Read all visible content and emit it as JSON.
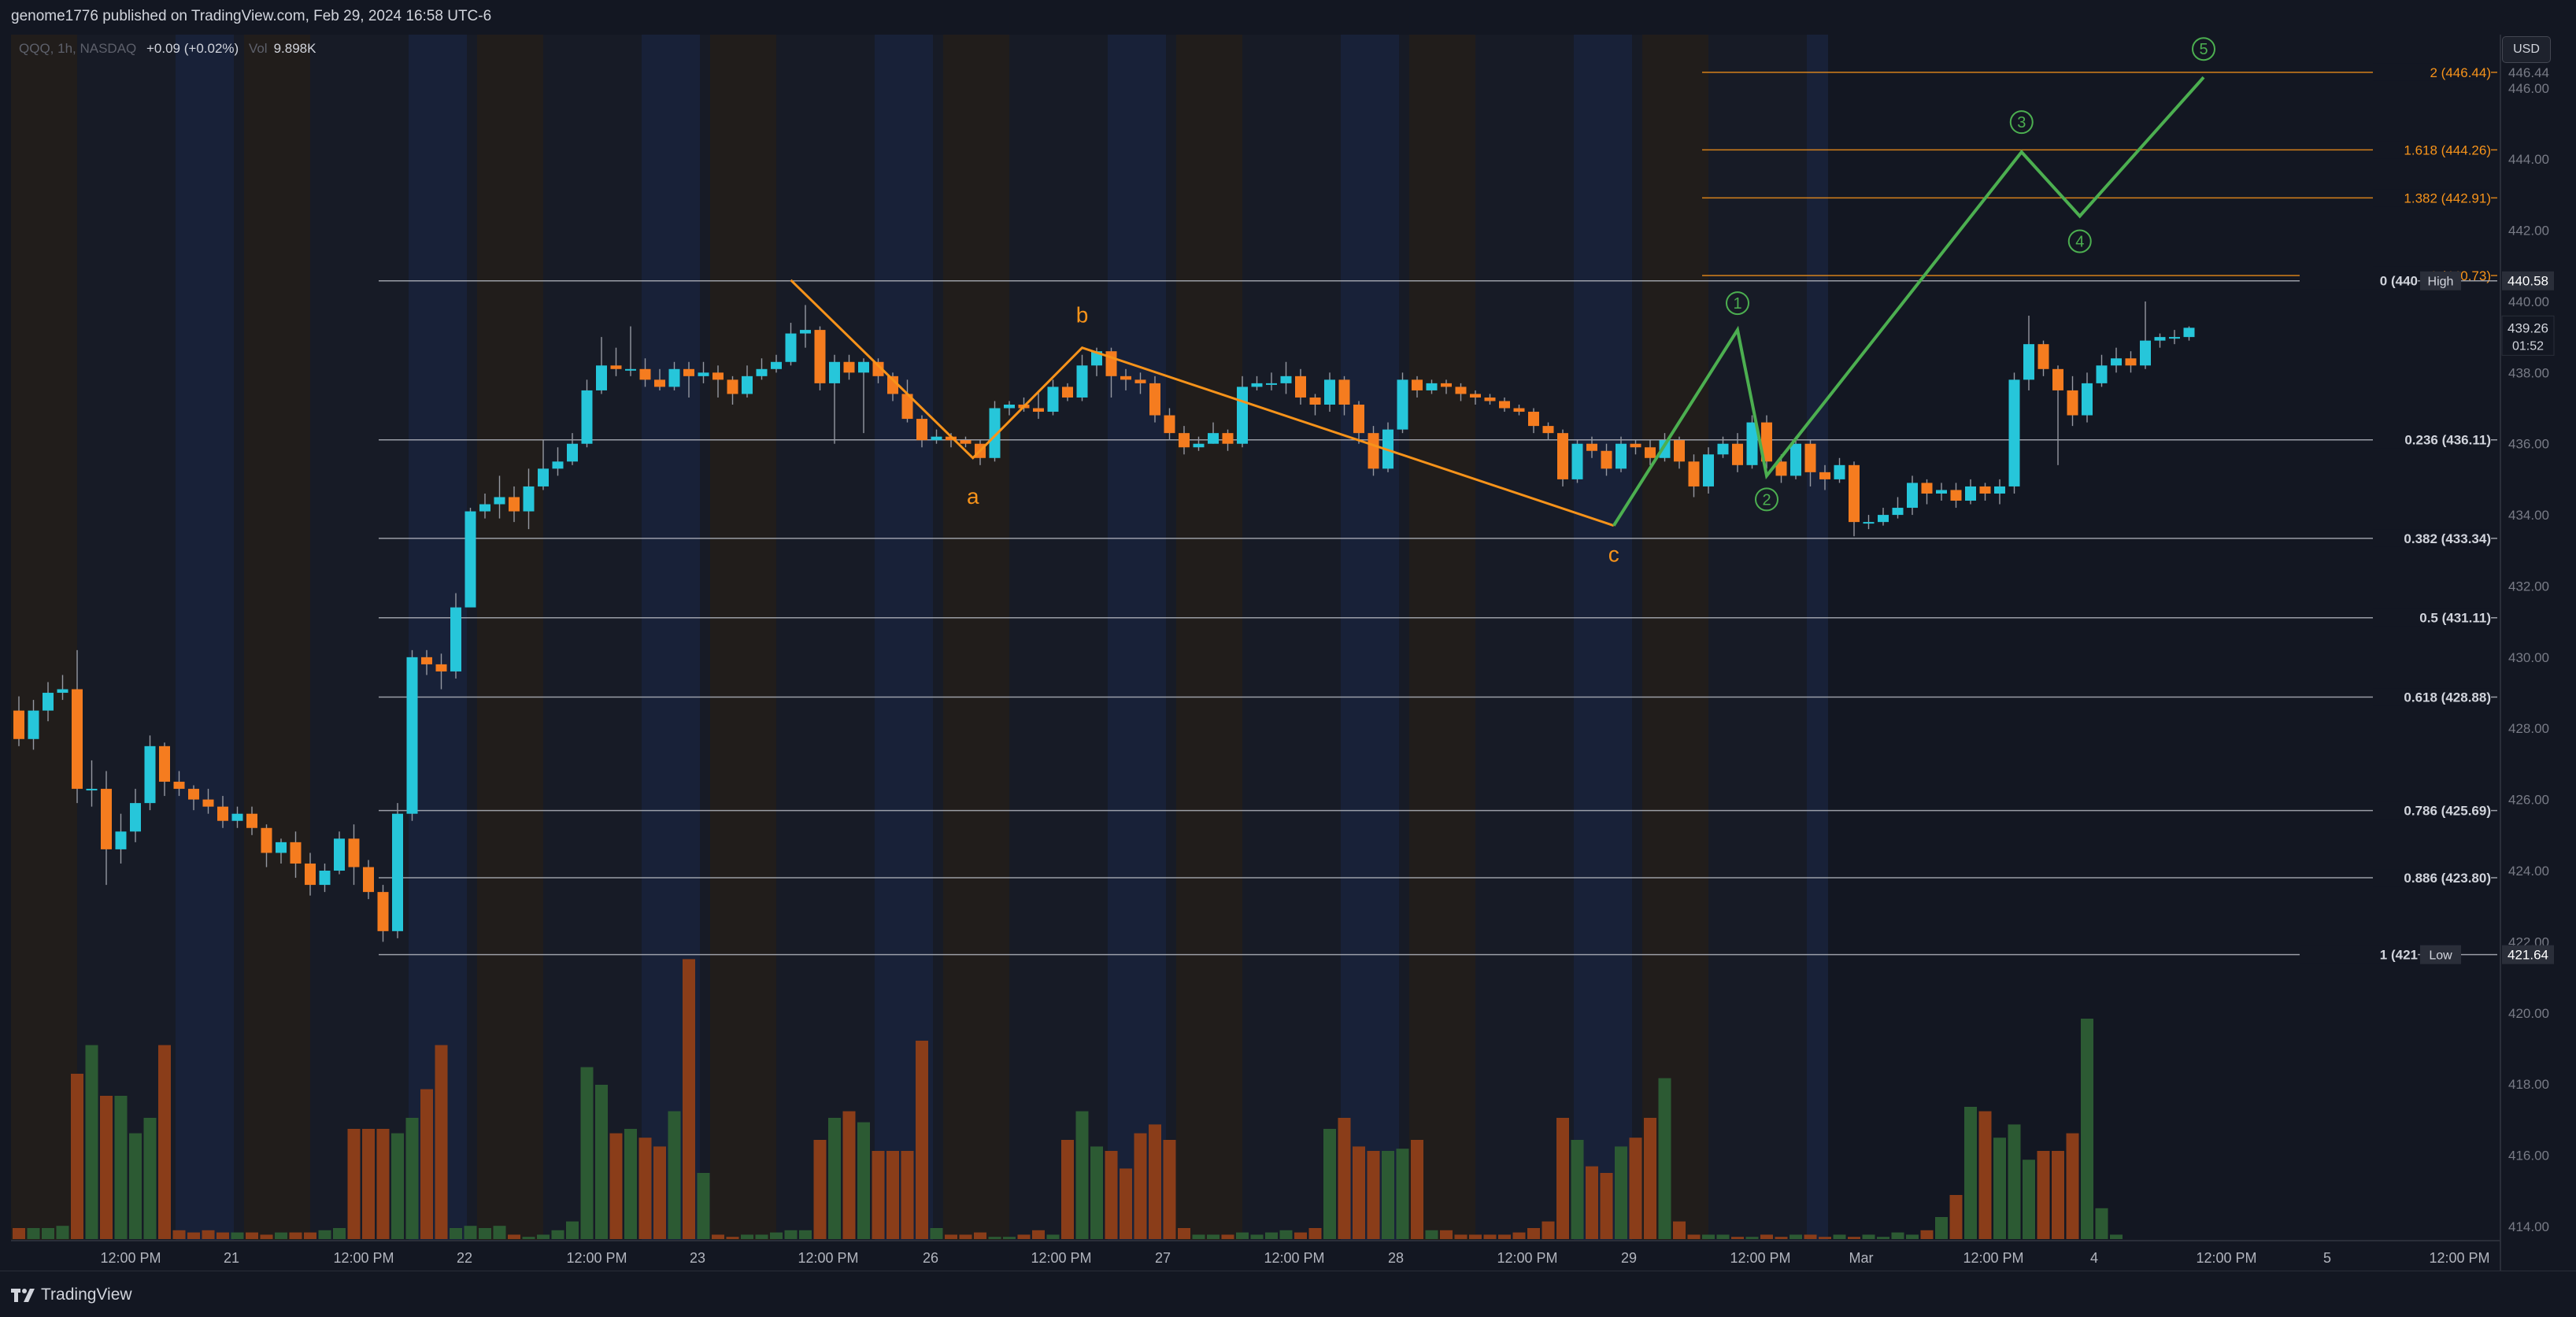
{
  "publisher": {
    "text": "genome1776 published on TradingView.com, Feb 29, 2024 16:58 UTC-6"
  },
  "legend": {
    "symbol": "QQQ, 1h, NASDAQ",
    "change": "+0.09 (+0.02%)",
    "vol_label": "Vol",
    "volume": "9.898K"
  },
  "currency_button": "USD",
  "footer": {
    "logo_text": "TradingView"
  },
  "colors": {
    "background": "#131722",
    "up": "#26c6da",
    "down": "#f57c1f",
    "vol_up": "#2c5a33",
    "vol_down": "#8a3d19",
    "wave_abc": "#f7931a",
    "wave_impulse": "#4caf50",
    "fib_extension": "#f7931a",
    "fib_retracement": "#b2b5be"
  },
  "chart_data": {
    "type": "candlestick",
    "symbol": "QQQ",
    "timeframe": "1h",
    "y_ticks": [
      "446.44",
      "446.00",
      "444.00",
      "442.00",
      "440.00",
      "438.00",
      "436.00",
      "434.00",
      "432.00",
      "430.00",
      "428.00",
      "426.00",
      "424.00",
      "422.00",
      "420.00",
      "418.00",
      "416.00",
      "414.00"
    ],
    "x_ticks": [
      "12:00 PM",
      "21",
      "12:00 PM",
      "22",
      "12:00 PM",
      "23",
      "12:00 PM",
      "26",
      "12:00 PM",
      "27",
      "12:00 PM",
      "28",
      "12:00 PM",
      "29",
      "12:00 PM",
      "Mar",
      "12:00 PM",
      "4",
      "12:00 PM",
      "5",
      "12:00 PM"
    ],
    "ylim": [
      413.6,
      447.5
    ],
    "candles": [
      [
        428.5,
        427.7,
        428.9,
        427.5
      ],
      [
        427.7,
        428.5,
        428.8,
        427.4
      ],
      [
        428.5,
        429.0,
        429.3,
        428.2
      ],
      [
        429.0,
        429.1,
        429.5,
        428.8
      ],
      [
        429.1,
        426.3,
        430.2,
        425.9
      ],
      [
        426.3,
        426.3,
        427.1,
        425.8
      ],
      [
        426.3,
        424.6,
        426.8,
        423.6
      ],
      [
        424.6,
        425.1,
        425.6,
        424.2
      ],
      [
        425.1,
        425.9,
        426.3,
        424.8
      ],
      [
        425.9,
        427.5,
        427.8,
        425.7
      ],
      [
        427.5,
        426.5,
        427.6,
        426.1
      ],
      [
        426.5,
        426.3,
        426.8,
        426.1
      ],
      [
        426.3,
        426.0,
        426.4,
        425.7
      ],
      [
        426.0,
        425.8,
        426.3,
        425.6
      ],
      [
        425.8,
        425.4,
        426.1,
        425.2
      ],
      [
        425.4,
        425.6,
        425.8,
        425.2
      ],
      [
        425.6,
        425.2,
        425.8,
        425.0
      ],
      [
        425.2,
        424.5,
        425.3,
        424.1
      ],
      [
        424.5,
        424.8,
        424.9,
        424.2
      ],
      [
        424.8,
        424.2,
        425.1,
        423.8
      ],
      [
        424.2,
        423.6,
        424.5,
        423.3
      ],
      [
        423.6,
        424.0,
        424.2,
        423.4
      ],
      [
        424.0,
        424.9,
        425.1,
        423.9
      ],
      [
        424.9,
        424.1,
        425.3,
        423.6
      ],
      [
        424.1,
        423.4,
        424.3,
        423.2
      ],
      [
        423.4,
        422.3,
        423.6,
        422.0
      ],
      [
        422.3,
        425.6,
        425.9,
        422.1
      ],
      [
        425.6,
        430.0,
        430.2,
        425.4
      ],
      [
        430.0,
        429.8,
        430.2,
        429.5
      ],
      [
        429.8,
        429.6,
        430.1,
        429.1
      ],
      [
        429.6,
        431.4,
        431.8,
        429.4
      ],
      [
        431.4,
        434.1,
        434.2,
        432.0
      ],
      [
        434.1,
        434.3,
        434.6,
        433.9
      ],
      [
        434.3,
        434.5,
        435.1,
        433.9
      ],
      [
        434.5,
        434.1,
        434.8,
        433.8
      ],
      [
        434.1,
        434.8,
        435.3,
        433.6
      ],
      [
        434.8,
        435.3,
        436.1,
        434.7
      ],
      [
        435.3,
        435.5,
        435.9,
        435.1
      ],
      [
        435.5,
        436.0,
        436.3,
        435.4
      ],
      [
        436.0,
        437.5,
        437.8,
        435.9
      ],
      [
        437.5,
        438.2,
        439.0,
        437.4
      ],
      [
        438.2,
        438.1,
        438.7,
        437.9
      ],
      [
        438.1,
        438.1,
        439.3,
        437.9
      ],
      [
        438.1,
        437.8,
        438.4,
        437.6
      ],
      [
        437.8,
        437.6,
        438.1,
        437.5
      ],
      [
        437.6,
        438.1,
        438.3,
        437.5
      ],
      [
        438.1,
        437.9,
        438.3,
        437.3
      ],
      [
        437.9,
        438.0,
        438.3,
        437.7
      ],
      [
        438.0,
        437.8,
        438.2,
        437.3
      ],
      [
        437.8,
        437.4,
        437.9,
        437.1
      ],
      [
        437.4,
        437.9,
        438.2,
        437.3
      ],
      [
        437.9,
        438.1,
        438.4,
        437.8
      ],
      [
        438.1,
        438.3,
        438.5,
        438.0
      ],
      [
        438.3,
        439.1,
        439.4,
        438.2
      ],
      [
        439.1,
        439.2,
        439.9,
        438.7
      ],
      [
        439.2,
        437.7,
        439.3,
        437.5
      ],
      [
        437.7,
        438.3,
        438.5,
        436.0
      ],
      [
        438.3,
        438.0,
        438.5,
        437.8
      ],
      [
        438.0,
        438.3,
        438.4,
        436.3
      ],
      [
        438.3,
        437.9,
        438.4,
        437.7
      ],
      [
        437.9,
        437.4,
        438.0,
        437.2
      ],
      [
        437.4,
        436.7,
        437.8,
        436.6
      ],
      [
        436.7,
        436.1,
        436.8,
        435.9
      ],
      [
        436.1,
        436.2,
        436.4,
        436.0
      ],
      [
        436.2,
        436.1,
        436.3,
        435.9
      ],
      [
        436.1,
        436.0,
        436.2,
        435.9
      ],
      [
        436.0,
        435.6,
        436.1,
        435.4
      ],
      [
        435.6,
        437.0,
        437.2,
        435.5
      ],
      [
        437.0,
        437.1,
        437.2,
        436.8
      ],
      [
        437.1,
        437.0,
        437.3,
        436.9
      ],
      [
        437.0,
        436.9,
        437.5,
        436.7
      ],
      [
        436.9,
        437.6,
        437.8,
        436.8
      ],
      [
        437.6,
        437.3,
        437.7,
        437.2
      ],
      [
        437.3,
        438.2,
        438.5,
        437.2
      ],
      [
        438.2,
        438.6,
        438.7,
        437.9
      ],
      [
        438.6,
        437.9,
        438.7,
        437.3
      ],
      [
        437.9,
        437.8,
        438.1,
        437.5
      ],
      [
        437.8,
        437.7,
        438.0,
        437.4
      ],
      [
        437.7,
        436.8,
        437.9,
        436.6
      ],
      [
        436.8,
        436.3,
        437.0,
        436.1
      ],
      [
        436.3,
        435.9,
        436.5,
        435.7
      ],
      [
        435.9,
        436.0,
        436.2,
        435.8
      ],
      [
        436.0,
        436.3,
        436.6,
        436.0
      ],
      [
        436.3,
        436.0,
        436.4,
        435.8
      ],
      [
        436.0,
        437.6,
        437.9,
        435.9
      ],
      [
        437.6,
        437.7,
        437.9,
        437.5
      ],
      [
        437.7,
        437.7,
        438.0,
        437.5
      ],
      [
        437.7,
        437.9,
        438.3,
        437.4
      ],
      [
        437.9,
        437.3,
        438.1,
        437.1
      ],
      [
        437.3,
        437.1,
        437.4,
        436.8
      ],
      [
        437.1,
        437.8,
        438.0,
        436.9
      ],
      [
        437.8,
        437.1,
        437.9,
        436.8
      ],
      [
        437.1,
        436.3,
        437.2,
        436.0
      ],
      [
        436.3,
        435.3,
        436.5,
        435.1
      ],
      [
        435.3,
        436.4,
        436.6,
        435.2
      ],
      [
        436.4,
        437.8,
        438.0,
        436.3
      ],
      [
        437.8,
        437.5,
        437.9,
        437.3
      ],
      [
        437.5,
        437.7,
        437.8,
        437.4
      ],
      [
        437.7,
        437.6,
        437.8,
        437.4
      ],
      [
        437.6,
        437.4,
        437.7,
        437.2
      ],
      [
        437.4,
        437.3,
        437.5,
        437.1
      ],
      [
        437.3,
        437.2,
        437.4,
        437.1
      ],
      [
        437.2,
        437.0,
        437.3,
        436.9
      ],
      [
        437.0,
        436.9,
        437.1,
        436.8
      ],
      [
        436.9,
        436.5,
        437.0,
        436.3
      ],
      [
        436.5,
        436.3,
        436.6,
        436.1
      ],
      [
        436.3,
        435.0,
        436.4,
        434.8
      ],
      [
        435.0,
        436.0,
        436.1,
        434.9
      ],
      [
        436.0,
        435.8,
        436.2,
        435.6
      ],
      [
        435.8,
        435.3,
        436.0,
        435.1
      ],
      [
        435.3,
        436.0,
        436.2,
        435.2
      ],
      [
        436.0,
        435.9,
        436.1,
        435.7
      ],
      [
        435.9,
        435.6,
        436.1,
        435.4
      ],
      [
        435.6,
        436.1,
        436.3,
        435.5
      ],
      [
        436.1,
        435.5,
        436.2,
        435.3
      ],
      [
        435.5,
        434.8,
        435.7,
        434.5
      ],
      [
        434.8,
        435.7,
        435.9,
        434.6
      ],
      [
        435.7,
        436.0,
        436.2,
        435.6
      ],
      [
        436.0,
        435.4,
        436.3,
        435.2
      ],
      [
        435.4,
        436.6,
        436.8,
        435.3
      ],
      [
        436.6,
        435.5,
        436.8,
        435.3
      ],
      [
        435.5,
        435.1,
        435.7,
        434.9
      ],
      [
        435.1,
        436.0,
        436.2,
        435.0
      ],
      [
        436.0,
        435.2,
        436.1,
        434.8
      ],
      [
        435.2,
        435.0,
        435.4,
        434.7
      ],
      [
        435.0,
        435.4,
        435.6,
        434.9
      ],
      [
        435.4,
        433.8,
        435.5,
        433.4
      ],
      [
        433.8,
        433.8,
        434.0,
        433.6
      ],
      [
        433.8,
        434.0,
        434.2,
        433.7
      ],
      [
        434.0,
        434.2,
        434.5,
        433.9
      ],
      [
        434.2,
        434.9,
        435.1,
        434.0
      ],
      [
        434.9,
        434.6,
        435.0,
        434.3
      ],
      [
        434.6,
        434.7,
        434.9,
        434.4
      ],
      [
        434.7,
        434.4,
        434.9,
        434.2
      ],
      [
        434.4,
        434.8,
        435.0,
        434.3
      ],
      [
        434.8,
        434.6,
        434.9,
        434.4
      ],
      [
        434.6,
        434.8,
        435.0,
        434.3
      ],
      [
        434.8,
        437.8,
        438.0,
        434.6
      ],
      [
        437.8,
        438.8,
        439.6,
        437.5
      ],
      [
        438.8,
        438.1,
        438.9,
        437.9
      ],
      [
        438.1,
        437.5,
        438.2,
        435.4
      ],
      [
        437.5,
        436.8,
        437.9,
        436.5
      ],
      [
        436.8,
        437.7,
        438.0,
        436.6
      ],
      [
        437.7,
        438.2,
        438.5,
        437.6
      ],
      [
        438.2,
        438.4,
        438.7,
        438.0
      ],
      [
        438.4,
        438.2,
        438.6,
        438.0
      ],
      [
        438.2,
        438.9,
        440.0,
        438.1
      ],
      [
        438.9,
        439.0,
        439.1,
        438.7
      ],
      [
        439.0,
        439.0,
        439.2,
        438.8
      ],
      [
        439.0,
        439.26,
        439.3,
        438.9
      ]
    ],
    "candle_slots": [
      0,
      1,
      2,
      3,
      4,
      5,
      6,
      7,
      8,
      9,
      10,
      11,
      12,
      13,
      14,
      15,
      16,
      17,
      18,
      19,
      20,
      21,
      22,
      23,
      24,
      25,
      26,
      27,
      28,
      29,
      30,
      31,
      32,
      33,
      34,
      35,
      36,
      37,
      38,
      39,
      40,
      41,
      42,
      43,
      44,
      45,
      46,
      47,
      48,
      49,
      50,
      51,
      52,
      53,
      54,
      55,
      56,
      57,
      58,
      59,
      60,
      61,
      62,
      63,
      64,
      65,
      66,
      67,
      68,
      69,
      70,
      71,
      72,
      73,
      74,
      75,
      76,
      77,
      78,
      79,
      80,
      81,
      82,
      83,
      84,
      85,
      86,
      87,
      88,
      89,
      90,
      91,
      92,
      93,
      94,
      95,
      96,
      97,
      98,
      99,
      100,
      101,
      102,
      103,
      104,
      105,
      106,
      107,
      108,
      109,
      110,
      111,
      112,
      113,
      114,
      115,
      116,
      117,
      118,
      119,
      120,
      121,
      122,
      123,
      124,
      125,
      126,
      127,
      128,
      129,
      130,
      131,
      132,
      133,
      134,
      135,
      136,
      137,
      138,
      139,
      140,
      141,
      142,
      143,
      144,
      145,
      146,
      147,
      148,
      149,
      150
    ],
    "volume_rel": [
      0.05,
      0.05,
      0.05,
      0.06,
      0.75,
      0.88,
      0.65,
      0.65,
      0.48,
      0.55,
      0.88,
      0.04,
      0.03,
      0.04,
      0.03,
      0.03,
      0.03,
      0.02,
      0.03,
      0.03,
      0.03,
      0.04,
      0.05,
      0.5,
      0.5,
      0.5,
      0.48,
      0.55,
      0.68,
      0.88,
      0.05,
      0.06,
      0.05,
      0.06,
      0.02,
      0.01,
      0.02,
      0.04,
      0.08,
      0.78,
      0.7,
      0.48,
      0.5,
      0.46,
      0.42,
      0.58,
      1.27,
      0.3,
      0.02,
      0.01,
      0.02,
      0.02,
      0.03,
      0.04,
      0.04,
      0.45,
      0.55,
      0.58,
      0.53,
      0.4,
      0.4,
      0.4,
      0.9,
      0.05,
      0.02,
      0.02,
      0.03,
      0.01,
      0.01,
      0.02,
      0.04,
      0.02,
      0.45,
      0.58,
      0.42,
      0.4,
      0.32,
      0.48,
      0.52,
      0.45,
      0.05,
      0.02,
      0.02,
      0.02,
      0.03,
      0.02,
      0.03,
      0.04,
      0.03,
      0.05,
      0.5,
      0.55,
      0.42,
      0.4,
      0.4,
      0.41,
      0.45,
      0.04,
      0.04,
      0.02,
      0.02,
      0.02,
      0.02,
      0.03,
      0.05,
      0.08,
      0.55,
      0.45,
      0.33,
      0.3,
      0.42,
      0.46,
      0.55,
      0.73,
      0.08,
      0.02,
      0.02,
      0.02,
      0.01,
      0.01,
      0.02,
      0.01,
      0.02,
      0.02,
      0.01,
      0.02,
      0.01,
      0.02,
      0.01,
      0.03,
      0.02,
      0.04,
      0.1,
      0.2,
      0.6,
      0.58,
      0.46,
      0.52,
      0.36,
      0.4,
      0.4,
      0.48,
      1.0,
      0.14,
      0.02
    ],
    "fib_levels": [
      {
        "label": "2 (446.44)",
        "value": 446.44,
        "kind": "extension"
      },
      {
        "label": "1.618 (444.26)",
        "value": 444.26,
        "kind": "extension"
      },
      {
        "label": "1.382 (442.91)",
        "value": 442.91,
        "kind": "extension"
      },
      {
        "label": "1 (440.73)",
        "value": 440.73,
        "kind": "extension"
      },
      {
        "label": "0 (440",
        "value": 440.58,
        "kind": "retracement",
        "tag": "High",
        "tag_value": "440.58"
      },
      {
        "label": "0.236 (436.11)",
        "value": 436.11,
        "kind": "retracement"
      },
      {
        "label": "0.382 (433.34)",
        "value": 433.34,
        "kind": "retracement"
      },
      {
        "label": "0.5 (431.11)",
        "value": 431.11,
        "kind": "retracement"
      },
      {
        "label": "0.618 (428.88)",
        "value": 428.88,
        "kind": "retracement"
      },
      {
        "label": "0.786 (425.69)",
        "value": 425.69,
        "kind": "retracement"
      },
      {
        "label": "0.886 (423.80)",
        "value": 423.8,
        "kind": "retracement"
      },
      {
        "label": "1 (421",
        "value": 421.64,
        "kind": "retracement",
        "tag": "Low",
        "tag_value": "421.64"
      }
    ],
    "current_price": {
      "value": "439.26",
      "countdown": "01:52"
    },
    "abc_wave": {
      "points": [
        [
          53,
          440.6
        ],
        [
          65.5,
          435.6
        ],
        [
          73,
          438.7
        ],
        [
          109.5,
          433.7
        ]
      ],
      "labels": [
        {
          "text": "a",
          "at": 1
        },
        {
          "text": "b",
          "at": 2
        },
        {
          "text": "c",
          "at": 3
        }
      ]
    },
    "impulse_wave": {
      "points": [
        [
          109.5,
          433.7
        ],
        [
          118,
          439.2
        ],
        [
          120,
          435.1
        ],
        [
          137.5,
          444.2
        ],
        [
          141.5,
          442.4
        ],
        [
          150,
          446.3
        ]
      ],
      "labels": [
        "1",
        "2",
        "3",
        "4",
        "5"
      ]
    }
  }
}
